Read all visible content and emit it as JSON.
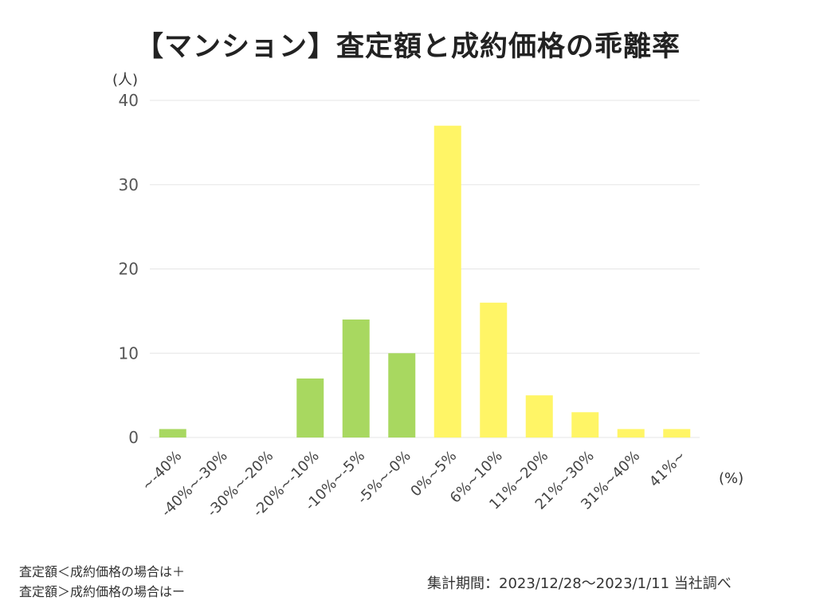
{
  "chart_data": {
    "type": "bar",
    "title": "【マンション】査定額と成約価格の乖離率",
    "ylabel": "(人)",
    "xlabel": "(%)",
    "ylim": [
      0,
      40
    ],
    "yticks": [
      0,
      10,
      20,
      30,
      40
    ],
    "grid": true,
    "categories": [
      "~-40%",
      "-40%~-30%",
      "-30%~-20%",
      "-20%~-10%",
      "-10%~-5%",
      "-5%~-0%",
      "0%~5%",
      "6%~10%",
      "11%~20%",
      "21%~30%",
      "31%~40%",
      "41%~"
    ],
    "values": [
      1,
      0,
      0,
      7,
      14,
      10,
      37,
      16,
      5,
      3,
      1,
      1
    ],
    "colors": [
      "#a8d860",
      "#a8d860",
      "#a8d860",
      "#a8d860",
      "#a8d860",
      "#a8d860",
      "#fff566",
      "#fff566",
      "#fff566",
      "#fff566",
      "#fff566",
      "#fff566"
    ]
  },
  "notes": {
    "line1": "査定額＜成約価格の場合は＋",
    "line2": "査定額＞成約価格の場合はー",
    "period": "集計期間：2023/12/28〜2023/1/11 当社調べ"
  },
  "colors": {
    "negative": "#a8d860",
    "positive": "#fff566",
    "grid": "#e6e6e6"
  }
}
